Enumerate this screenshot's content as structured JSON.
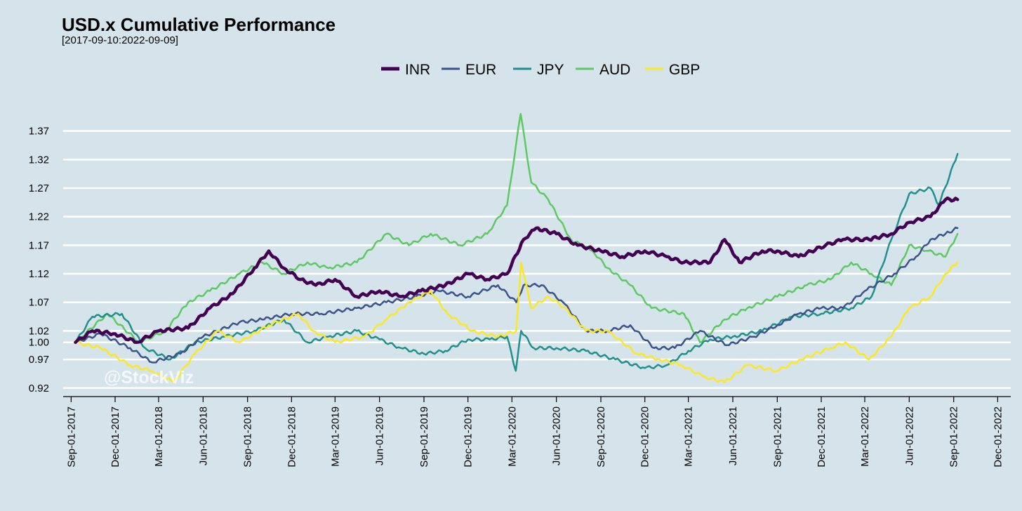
{
  "chart_data": {
    "type": "line",
    "title": "USD.x Cumulative Performance",
    "subtitle": "[2017-09-10:2022-09-09]",
    "watermark": "@StockViz",
    "xlabel": "",
    "ylabel": "",
    "ylim": [
      0.905,
      1.415
    ],
    "grid": true,
    "legend_position": "top",
    "y_ticks": [
      0.92,
      0.97,
      1.0,
      1.02,
      1.07,
      1.12,
      1.17,
      1.22,
      1.27,
      1.32,
      1.37
    ],
    "y_tick_labels": [
      "0.92",
      "0.97",
      "1.00",
      "1.02",
      "1.07",
      "1.12",
      "1.17",
      "1.22",
      "1.27",
      "1.32",
      "1.37"
    ],
    "x_ticks": [
      "2017-09-01",
      "2017-12-01",
      "2018-03-01",
      "2018-06-01",
      "2018-09-01",
      "2018-12-01",
      "2019-03-01",
      "2019-06-01",
      "2019-09-01",
      "2019-12-01",
      "2020-03-01",
      "2020-06-01",
      "2020-09-01",
      "2020-12-01",
      "2021-03-01",
      "2021-06-01",
      "2021-09-01",
      "2021-12-01",
      "2022-03-01",
      "2022-06-01",
      "2022-09-01",
      "2022-12-01"
    ],
    "x_tick_labels": [
      "Sep-01-2017",
      "Dec-01-2017",
      "Mar-01-2018",
      "Jun-01-2018",
      "Sep-01-2018",
      "Dec-01-2018",
      "Mar-01-2019",
      "Jun-01-2019",
      "Sep-01-2019",
      "Dec-01-2019",
      "Mar-01-2020",
      "Jun-01-2020",
      "Sep-01-2020",
      "Dec-01-2020",
      "Mar-01-2021",
      "Jun-01-2021",
      "Sep-01-2021",
      "Dec-01-2021",
      "Mar-01-2022",
      "Jun-01-2022",
      "Sep-01-2022",
      "Dec-01-2022"
    ],
    "series": [
      {
        "name": "INR",
        "color": "#440154",
        "width": 4.5,
        "x": [
          "2017-09-10",
          "2017-10-15",
          "2017-12-01",
          "2018-01-15",
          "2018-03-01",
          "2018-05-01",
          "2018-06-15",
          "2018-08-01",
          "2018-09-15",
          "2018-10-15",
          "2018-11-15",
          "2018-12-20",
          "2019-01-20",
          "2019-03-01",
          "2019-04-15",
          "2019-06-01",
          "2019-07-15",
          "2019-08-25",
          "2019-10-15",
          "2019-12-01",
          "2020-01-10",
          "2020-02-20",
          "2020-03-25",
          "2020-04-20",
          "2020-06-01",
          "2020-07-15",
          "2020-09-01",
          "2020-10-15",
          "2020-12-01",
          "2021-01-15",
          "2021-02-20",
          "2021-04-15",
          "2021-05-15",
          "2021-06-15",
          "2021-08-01",
          "2021-09-01",
          "2021-10-15",
          "2021-12-10",
          "2022-01-15",
          "2022-03-10",
          "2022-04-25",
          "2022-06-01",
          "2022-07-15",
          "2022-08-15",
          "2022-09-09"
        ],
        "y": [
          1.0,
          1.02,
          1.015,
          1.0,
          1.02,
          1.025,
          1.06,
          1.085,
          1.13,
          1.16,
          1.13,
          1.11,
          1.1,
          1.11,
          1.08,
          1.09,
          1.08,
          1.09,
          1.1,
          1.12,
          1.11,
          1.12,
          1.18,
          1.2,
          1.19,
          1.17,
          1.16,
          1.15,
          1.16,
          1.15,
          1.14,
          1.14,
          1.18,
          1.14,
          1.16,
          1.16,
          1.15,
          1.17,
          1.18,
          1.18,
          1.19,
          1.21,
          1.22,
          1.25,
          1.25
        ]
      },
      {
        "name": "EUR",
        "color": "#3b528b",
        "width": 2.5,
        "x": [
          "2017-09-10",
          "2017-11-01",
          "2018-01-01",
          "2018-02-15",
          "2018-04-15",
          "2018-06-01",
          "2018-08-15",
          "2018-10-01",
          "2018-12-01",
          "2019-02-01",
          "2019-04-15",
          "2019-06-15",
          "2019-08-15",
          "2019-10-01",
          "2019-12-01",
          "2020-02-01",
          "2020-03-10",
          "2020-03-25",
          "2020-05-01",
          "2020-06-15",
          "2020-08-01",
          "2020-09-15",
          "2020-11-01",
          "2020-12-20",
          "2021-02-01",
          "2021-03-25",
          "2021-05-20",
          "2021-07-15",
          "2021-09-01",
          "2021-10-15",
          "2021-12-01",
          "2022-01-15",
          "2022-03-01",
          "2022-05-01",
          "2022-06-15",
          "2022-07-15",
          "2022-08-15",
          "2022-09-09"
        ],
        "y": [
          1.0,
          1.015,
          0.99,
          0.965,
          0.98,
          1.01,
          1.035,
          1.04,
          1.05,
          1.05,
          1.06,
          1.07,
          1.08,
          1.09,
          1.08,
          1.1,
          1.07,
          1.1,
          1.1,
          1.07,
          1.02,
          1.02,
          1.03,
          0.99,
          0.99,
          1.02,
          0.995,
          1.01,
          1.03,
          1.05,
          1.06,
          1.06,
          1.09,
          1.12,
          1.15,
          1.18,
          1.19,
          1.2
        ]
      },
      {
        "name": "JPY",
        "color": "#21908d",
        "width": 2.5,
        "x": [
          "2017-09-10",
          "2017-10-15",
          "2017-12-15",
          "2018-02-01",
          "2018-03-25",
          "2018-05-15",
          "2018-07-15",
          "2018-09-15",
          "2018-11-15",
          "2019-01-03",
          "2019-02-15",
          "2019-04-15",
          "2019-06-01",
          "2019-07-15",
          "2019-09-01",
          "2019-10-15",
          "2019-12-01",
          "2020-01-15",
          "2020-02-20",
          "2020-03-09",
          "2020-03-20",
          "2020-04-15",
          "2020-06-01",
          "2020-08-01",
          "2020-10-01",
          "2020-12-01",
          "2021-01-15",
          "2021-03-01",
          "2021-04-15",
          "2021-06-01",
          "2021-08-01",
          "2021-10-01",
          "2021-12-01",
          "2022-02-01",
          "2022-03-15",
          "2022-04-25",
          "2022-06-01",
          "2022-07-15",
          "2022-08-01",
          "2022-09-09"
        ],
        "y": [
          1.0,
          1.045,
          1.05,
          0.99,
          0.97,
          1.0,
          1.01,
          1.02,
          1.04,
          1.0,
          1.01,
          1.02,
          1.005,
          0.99,
          0.98,
          0.985,
          1.005,
          1.005,
          1.01,
          0.95,
          1.02,
          0.99,
          0.99,
          0.985,
          0.97,
          0.955,
          0.96,
          0.985,
          1.005,
          1.01,
          1.02,
          1.045,
          1.05,
          1.06,
          1.08,
          1.18,
          1.26,
          1.27,
          1.24,
          1.33
        ]
      },
      {
        "name": "AUD",
        "color": "#5ec962",
        "width": 2.5,
        "x": [
          "2017-09-10",
          "2017-11-15",
          "2018-01-20",
          "2018-03-15",
          "2018-05-01",
          "2018-06-15",
          "2018-08-15",
          "2018-10-01",
          "2018-11-15",
          "2019-01-03",
          "2019-02-15",
          "2019-04-15",
          "2019-06-15",
          "2019-08-01",
          "2019-09-15",
          "2019-11-15",
          "2020-01-10",
          "2020-02-20",
          "2020-03-19",
          "2020-04-10",
          "2020-05-15",
          "2020-07-01",
          "2020-08-15",
          "2020-09-15",
          "2020-11-01",
          "2020-12-15",
          "2021-02-20",
          "2021-03-25",
          "2021-05-15",
          "2021-07-01",
          "2021-09-01",
          "2021-11-01",
          "2021-12-20",
          "2022-02-01",
          "2022-03-15",
          "2022-04-25",
          "2022-06-01",
          "2022-07-10",
          "2022-08-15",
          "2022-09-09"
        ],
        "y": [
          1.0,
          1.05,
          1.0,
          1.02,
          1.07,
          1.09,
          1.12,
          1.14,
          1.12,
          1.14,
          1.13,
          1.14,
          1.19,
          1.17,
          1.19,
          1.17,
          1.19,
          1.24,
          1.4,
          1.28,
          1.25,
          1.18,
          1.16,
          1.13,
          1.1,
          1.06,
          1.05,
          1.0,
          1.04,
          1.06,
          1.08,
          1.1,
          1.11,
          1.14,
          1.12,
          1.1,
          1.17,
          1.16,
          1.15,
          1.19
        ]
      },
      {
        "name": "GBP",
        "color": "#fde725",
        "width": 2.5,
        "x": [
          "2017-09-10",
          "2017-11-01",
          "2018-01-01",
          "2018-02-15",
          "2018-04-01",
          "2018-05-15",
          "2018-07-01",
          "2018-08-15",
          "2018-10-15",
          "2018-12-15",
          "2019-01-15",
          "2019-03-01",
          "2019-05-01",
          "2019-06-15",
          "2019-08-01",
          "2019-09-15",
          "2019-10-20",
          "2019-12-10",
          "2020-02-01",
          "2020-03-10",
          "2020-03-20",
          "2020-04-10",
          "2020-05-15",
          "2020-06-20",
          "2020-08-01",
          "2020-09-15",
          "2020-11-15",
          "2021-01-01",
          "2021-02-15",
          "2021-04-01",
          "2021-05-15",
          "2021-07-01",
          "2021-09-01",
          "2021-10-20",
          "2021-12-20",
          "2022-01-20",
          "2022-03-10",
          "2022-04-25",
          "2022-06-01",
          "2022-07-15",
          "2022-08-15",
          "2022-09-09"
        ],
        "y": [
          1.0,
          0.99,
          0.96,
          0.95,
          0.93,
          0.98,
          1.02,
          1.0,
          1.03,
          1.05,
          1.02,
          1.0,
          1.01,
          1.04,
          1.07,
          1.09,
          1.05,
          1.02,
          1.01,
          1.02,
          1.14,
          1.06,
          1.08,
          1.06,
          1.02,
          1.02,
          0.98,
          0.97,
          0.96,
          0.94,
          0.93,
          0.96,
          0.95,
          0.97,
          0.99,
          1.0,
          0.97,
          1.01,
          1.06,
          1.08,
          1.12,
          1.14
        ]
      }
    ]
  }
}
